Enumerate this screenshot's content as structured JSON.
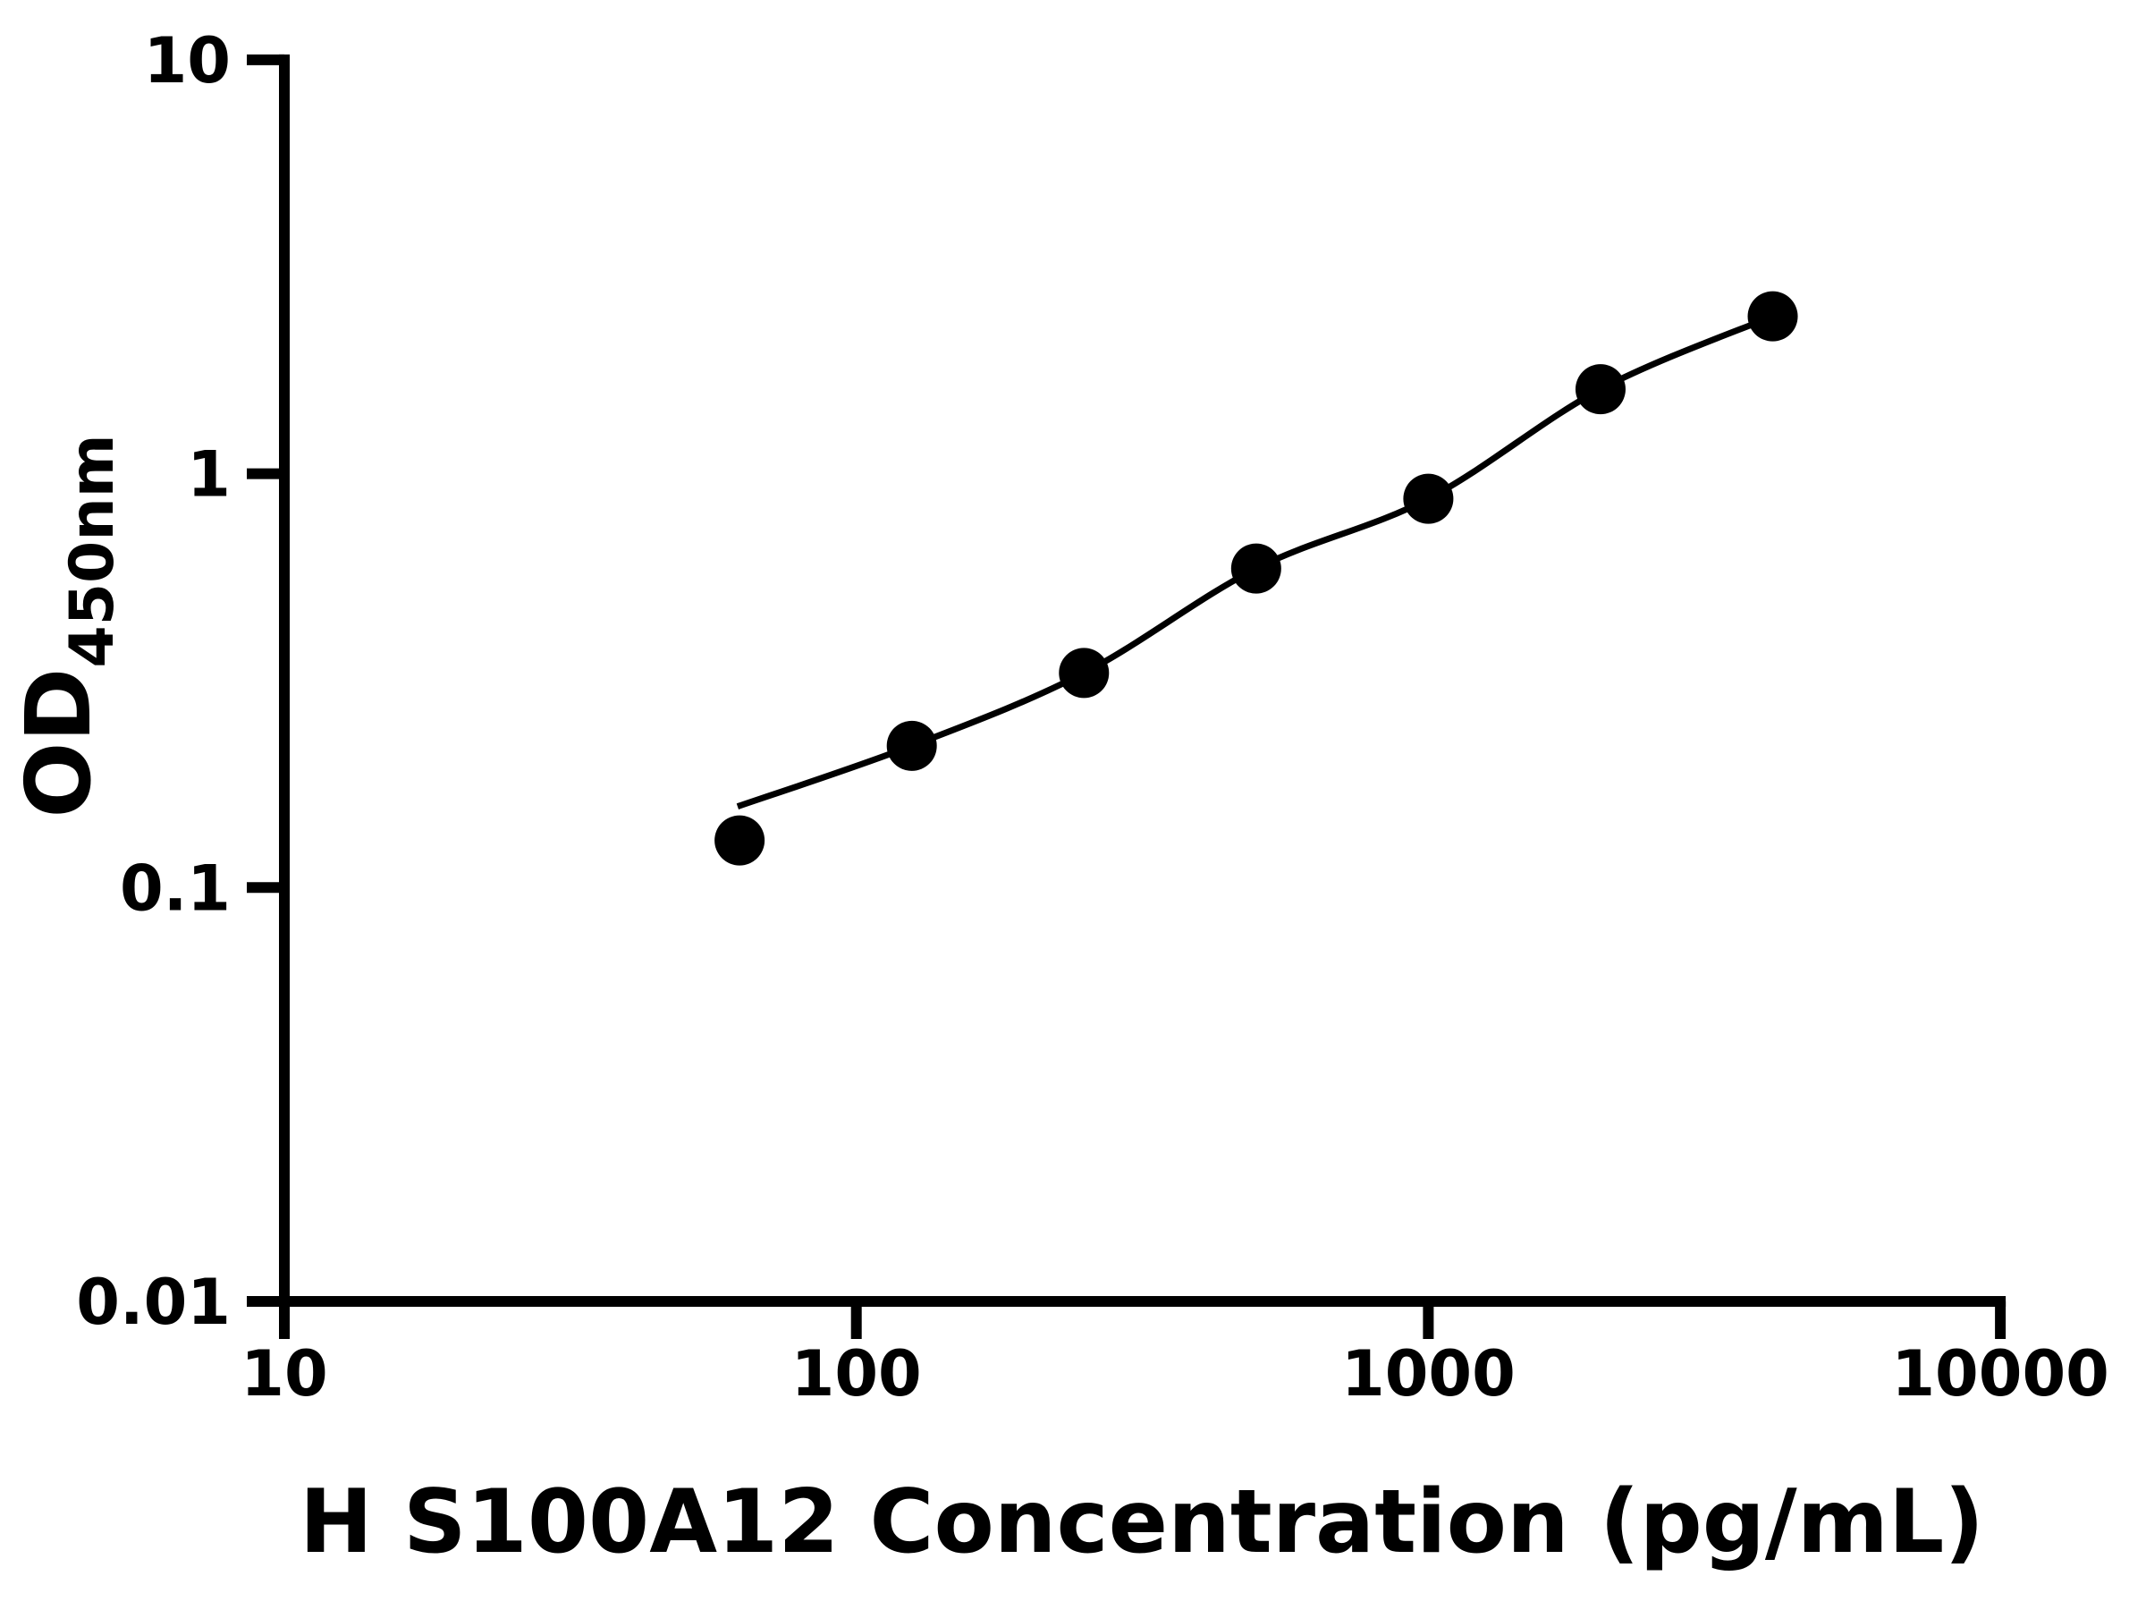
{
  "figure": {
    "background_color": "#ffffff",
    "ink_color": "#000000",
    "title": ""
  },
  "chart_data": {
    "type": "scatter",
    "subtype": "elisa-standard-curve-with-fit-line",
    "title": "",
    "xlabel": "H S100A12 Concentration (pg/mL)",
    "ylabel_main": "OD",
    "ylabel_sub": "450nm",
    "x_scale": "log",
    "y_scale": "log",
    "xlim": [
      10,
      10000
    ],
    "ylim": [
      0.01,
      10
    ],
    "x_ticks": [
      10,
      100,
      1000,
      10000
    ],
    "x_tick_labels": [
      "10",
      "100",
      "1000",
      "10000"
    ],
    "y_ticks": [
      10,
      1,
      0.1,
      0.01
    ],
    "y_tick_labels": [
      "10",
      "1",
      "0.1",
      "0.01"
    ],
    "grid": false,
    "legend": null,
    "marker": {
      "shape": "filled-circle",
      "color": "#000000"
    },
    "line": {
      "color": "#000000",
      "style": "solid"
    },
    "series": [
      {
        "name": "standard-curve",
        "x": [
          62.5,
          125,
          250,
          500,
          1000,
          2000,
          4000
        ],
        "y": [
          0.13,
          0.22,
          0.33,
          0.59,
          0.87,
          1.6,
          2.4
        ]
      }
    ],
    "fit_curve": {
      "start_x": 62,
      "start_y": 0.157,
      "ends_at_last_point": true
    }
  }
}
